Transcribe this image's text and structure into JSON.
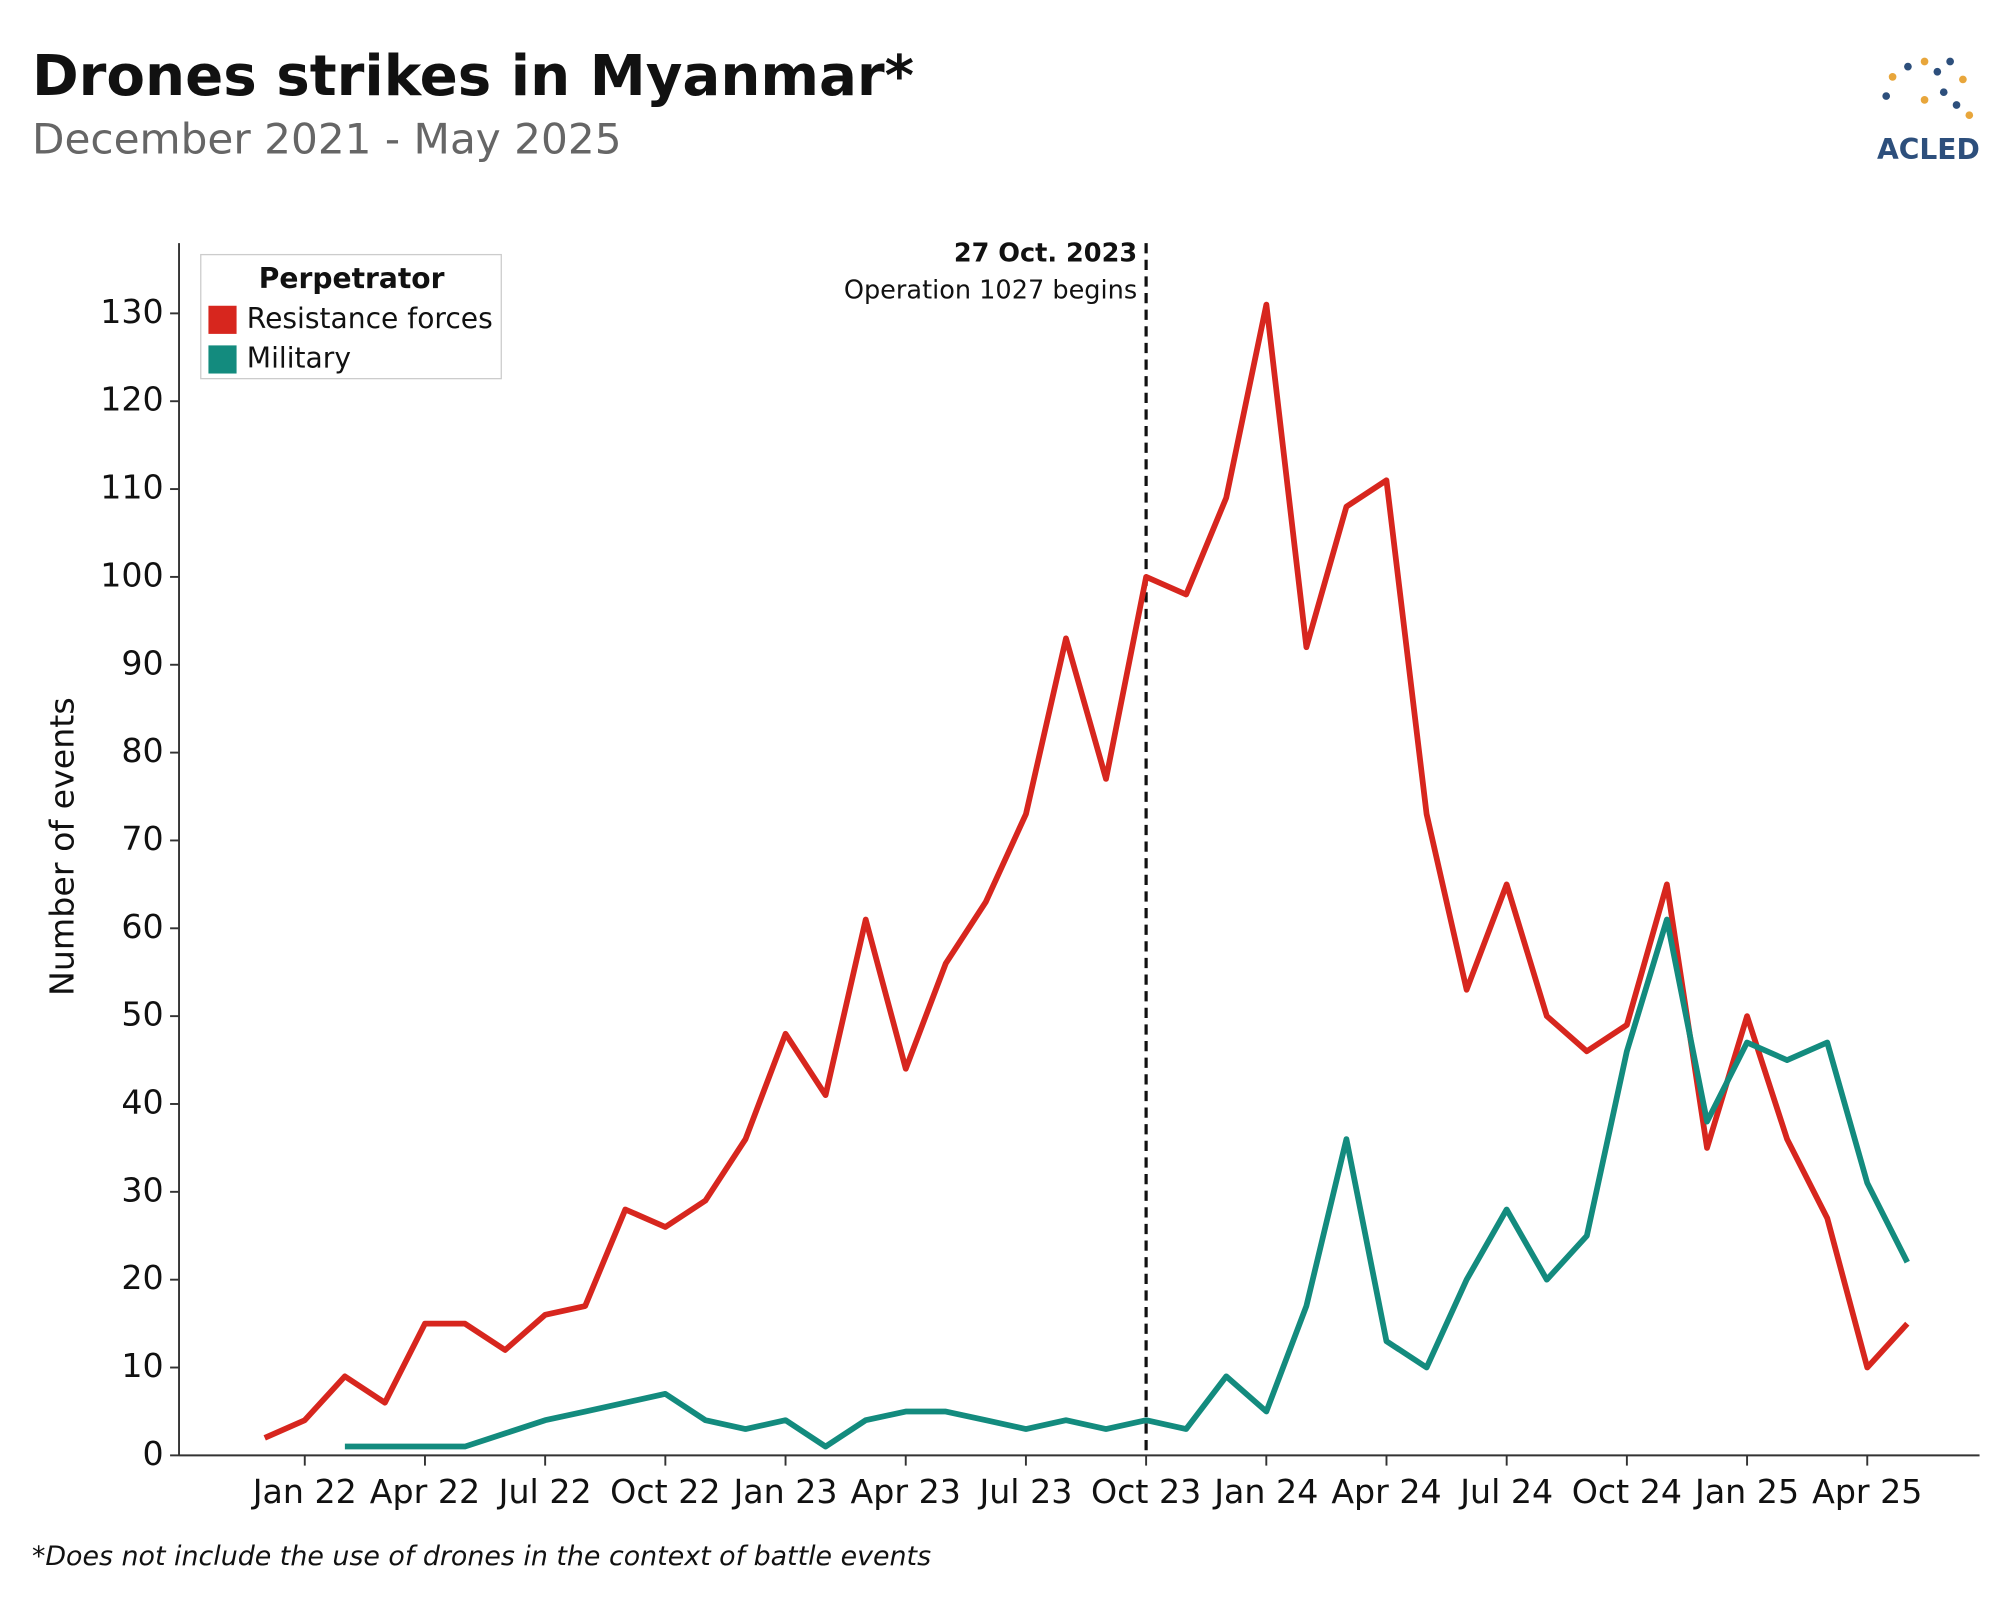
{
  "chart_data": {
    "type": "line",
    "title": "Drones strikes in Myanmar*",
    "subtitle": "December 2021 - May 2025",
    "y_label": "Number of events",
    "footnote": "*Does not include the use of drones in the context of battle events",
    "logo": "ACLED",
    "legend_title": "Perpetrator",
    "legend_position": "upper left",
    "annotation": {
      "title": "27 Oct. 2023",
      "text": "Operation 1027 begins",
      "category_index": 22
    },
    "categories": [
      null,
      "Jan 22",
      null,
      null,
      "Apr 22",
      null,
      null,
      "Jul 22",
      null,
      null,
      "Oct 22",
      null,
      null,
      "Jan 23",
      null,
      null,
      "Apr 23",
      null,
      null,
      "Jul 23",
      null,
      null,
      "Oct 23",
      null,
      null,
      "Jan 24",
      null,
      null,
      "Apr 24",
      null,
      null,
      "Jul 24",
      null,
      null,
      "Oct 24",
      null,
      null,
      "Jan 25",
      null,
      null,
      "Apr 25",
      null
    ],
    "series": [
      {
        "name": "Resistance forces",
        "color": "#d7261e",
        "values": [
          2,
          4,
          9,
          6,
          15,
          15,
          12,
          16,
          17,
          28,
          26,
          29,
          36,
          48,
          41,
          61,
          44,
          56,
          63,
          73,
          93,
          77,
          100,
          98,
          109,
          131,
          92,
          108,
          111,
          73,
          53,
          65,
          50,
          46,
          49,
          65,
          35,
          50,
          36,
          27,
          10,
          15
        ]
      },
      {
        "name": "Military",
        "color": "#138b7e",
        "values": [
          null,
          null,
          1,
          1,
          1,
          1,
          2.5,
          4,
          5,
          6,
          7,
          4,
          3,
          4,
          1,
          4,
          5,
          5,
          4,
          3,
          4,
          3,
          4,
          3,
          9,
          5,
          17,
          36,
          13,
          10,
          20,
          28,
          20,
          25,
          46,
          61,
          38,
          47,
          45,
          47,
          31,
          22
        ]
      }
    ],
    "ylim": [
      0,
      138
    ],
    "yticks": [
      0,
      10,
      20,
      30,
      40,
      50,
      60,
      70,
      80,
      90,
      100,
      110,
      120,
      130
    ],
    "grid": false
  }
}
